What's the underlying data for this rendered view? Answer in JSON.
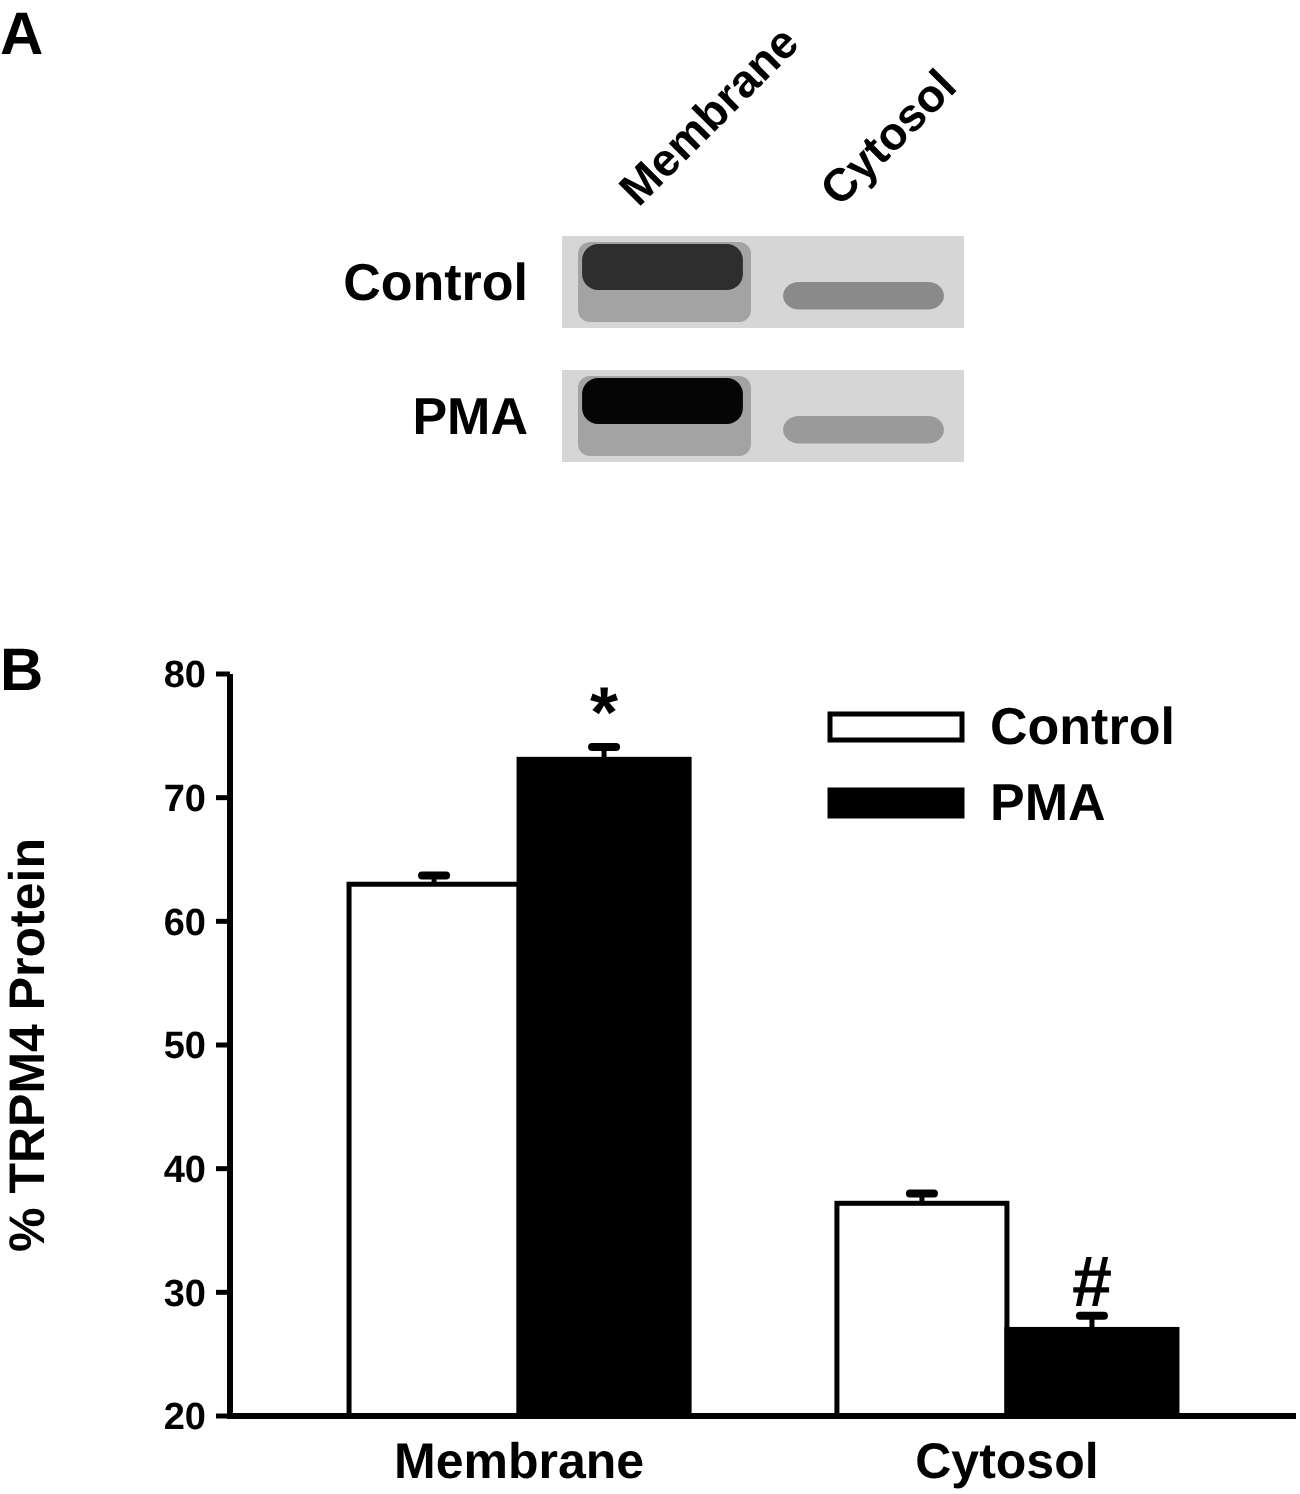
{
  "chart_data": [
    {
      "type": "other",
      "annotations": [
        "A"
      ],
      "categories": [
        "Membrane",
        "Cytosol"
      ],
      "y_categories": [
        "Control",
        "PMA"
      ]
    },
    {
      "type": "bar",
      "annotations": [
        "B",
        "*",
        {
          "text": "#",
          "x": "Cytosol",
          "y": 28.1
        }
      ],
      "ylabel": "% TRPM4 Protein",
      "categories": [
        "Membrane",
        "Cytosol"
      ],
      "series": [
        {
          "name": "Control",
          "color": "#ffffff",
          "values": [
            63,
            37.2
          ],
          "errors": [
            [
              63,
              63.7
            ],
            [
              37.2,
              38.0
            ]
          ]
        },
        {
          "name": "PMA",
          "color": "#000000",
          "values": [
            73.1,
            27.0
          ],
          "errors": [
            [
              73.1,
              74.1
            ],
            [
              27.0,
              28.1
            ]
          ]
        }
      ],
      "ylim": [
        20,
        80
      ],
      "yticks": [
        20,
        30,
        40,
        50,
        60,
        70,
        80
      ],
      "legend": "top right"
    }
  ]
}
